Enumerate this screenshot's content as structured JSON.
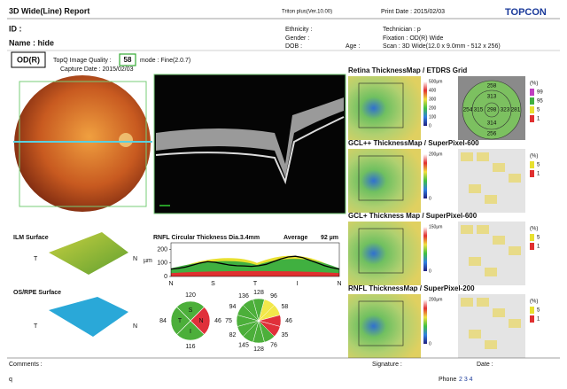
{
  "header": {
    "title": "3D Wide(Line) Report",
    "software": "Triton plus(Ver.10.00)",
    "print_date": "Print Date : 2015/02/03",
    "brand": "TOPCON"
  },
  "patient": {
    "id": "ID :",
    "name": "Name : hide",
    "ethnicity": "Ethnicity :",
    "gender": "Gender :",
    "dob": "DOB :",
    "age": "Age :",
    "technician": "Technician : p",
    "fixation": "Fixation : OD(R) Wide",
    "scan": "Scan : 3D Wide(12.0 x 9.0mm - 512 x 256)"
  },
  "exam": {
    "eye": "OD(R)",
    "quality_label": "TopQ Image Quality :",
    "quality": "58",
    "mode": "mode : Fine(2.0.7)",
    "capture": "Capture Date : 2015/02/03"
  },
  "maps": [
    {
      "title": "Retina ThicknessMap / ETDRS Grid",
      "scale": [
        "500μm",
        "400",
        "300",
        "200",
        "100",
        "0"
      ],
      "legend": [
        "(%)",
        "99",
        "95",
        "5",
        "1"
      ]
    },
    {
      "title": "GCL++ ThicknessMap / SuperPixel-600",
      "scale": [
        "200μm",
        "0"
      ],
      "legend": [
        "(%)",
        "5",
        "1"
      ]
    },
    {
      "title": "GCL+ Thickness Map / SuperPixel-600",
      "scale": [
        "150μm",
        "0"
      ],
      "legend": [
        "(%)",
        "5",
        "1"
      ]
    },
    {
      "title": "RNFL ThicknessMap / SuperPixel-200",
      "scale": [
        "200μm",
        "0"
      ],
      "legend": [
        "(%)",
        "5",
        "1"
      ]
    }
  ],
  "etdrs": {
    "outer_superior": "258",
    "inner_superior": "313",
    "outer_temporal": "254",
    "inner_temporal": "315",
    "center": "298",
    "inner_nasal": "323",
    "outer_nasal": "281",
    "inner_inferior": "314",
    "outer_inferior": "256"
  },
  "surfaces": {
    "ilm": "ILM Surface",
    "rpe": "OS/RPE Surface",
    "temporal": "T",
    "nasal": "N"
  },
  "rnfl_chart": {
    "title": "RNFL Circular Thickness Dia.3.4mm",
    "average_label": "Average",
    "average": "92 µm",
    "ylim": [
      0,
      250
    ],
    "yticks": [
      0,
      100,
      200
    ],
    "y_label": "µm",
    "categories": [
      "N",
      "S",
      "T",
      "I",
      "N"
    ],
    "color": "#000000",
    "values": [
      55,
      60,
      70,
      85,
      100,
      110,
      105,
      95,
      85,
      80,
      78,
      75,
      80,
      90,
      110,
      130,
      145,
      150,
      140,
      120,
      100,
      80,
      65,
      55
    ]
  },
  "quadrants": [
    {
      "label": "S",
      "value": "120",
      "color": "#4caf3a"
    },
    {
      "label": "N",
      "value": "46",
      "color": "#e0303a"
    },
    {
      "label": "I",
      "value": "116",
      "color": "#4caf3a"
    },
    {
      "label": "T",
      "value": "84",
      "color": "#4caf3a"
    }
  ],
  "clock": [
    {
      "value": "128",
      "color": "#4caf3a"
    },
    {
      "value": "96",
      "color": "#f2e84a"
    },
    {
      "value": "58",
      "color": "#f2e84a"
    },
    {
      "value": "46",
      "color": "#e0303a"
    },
    {
      "value": "35",
      "color": "#e0303a"
    },
    {
      "value": "76",
      "color": "#4caf3a"
    },
    {
      "value": "128",
      "color": "#4caf3a"
    },
    {
      "value": "145",
      "color": "#4caf3a"
    },
    {
      "value": "82",
      "color": "#4caf3a"
    },
    {
      "value": "75",
      "color": "#4caf3a"
    },
    {
      "value": "94",
      "color": "#4caf3a"
    },
    {
      "value": "136",
      "color": "#4caf3a"
    }
  ],
  "footer": {
    "comments": "Comments :",
    "signature": "Signature :",
    "date": "Date :",
    "user": "q",
    "phone": "Phone",
    "pages": "2 3 4"
  }
}
